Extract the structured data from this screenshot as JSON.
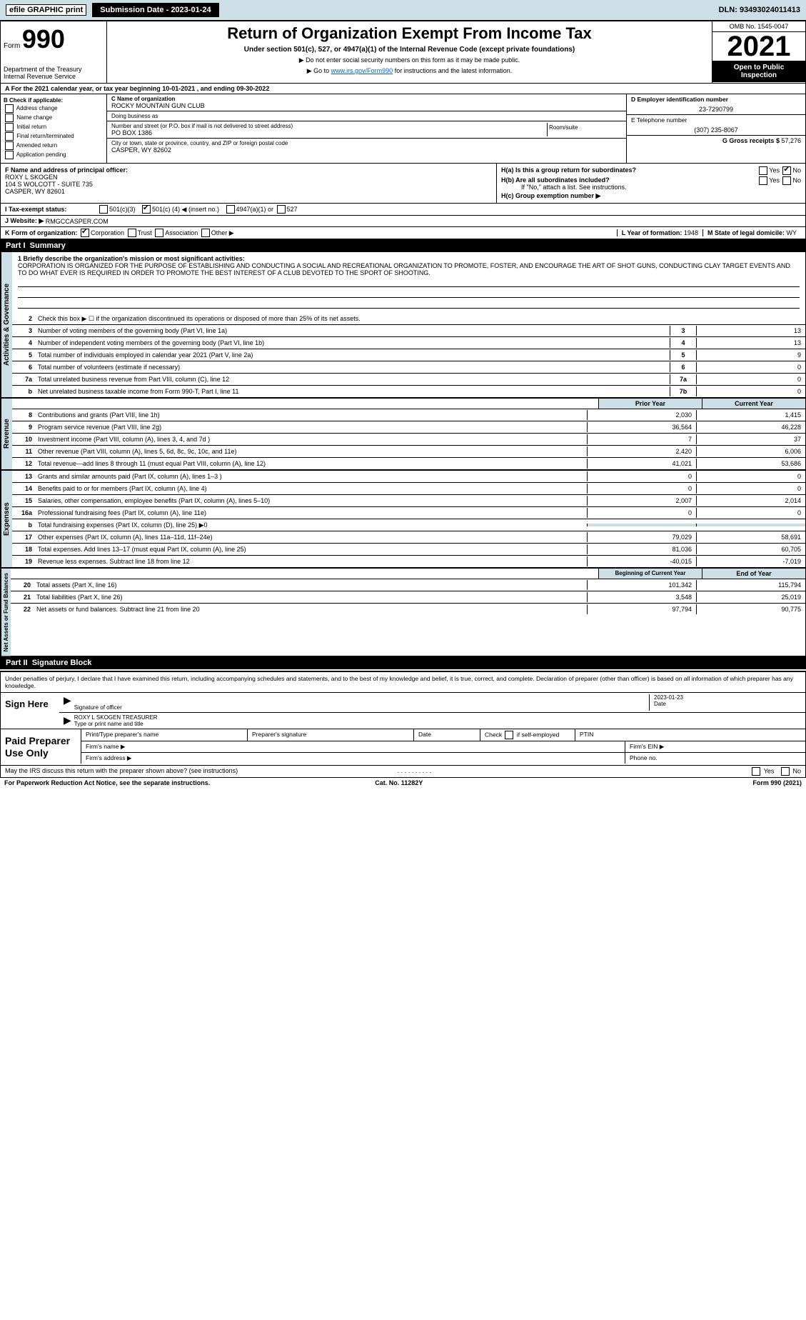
{
  "topbar": {
    "efile": "efile GRAPHIC print",
    "submission": "Submission Date - 2023-01-24",
    "dln": "DLN: 93493024011413"
  },
  "header": {
    "form_word": "Form",
    "form_num": "990",
    "dept": "Department of the Treasury\nInternal Revenue Service",
    "title": "Return of Organization Exempt From Income Tax",
    "subtitle": "Under section 501(c), 527, or 4947(a)(1) of the Internal Revenue Code (except private foundations)",
    "note1": "▶ Do not enter social security numbers on this form as it may be made public.",
    "note2_pre": "▶ Go to ",
    "note2_link": "www.irs.gov/Form990",
    "note2_post": " for instructions and the latest information.",
    "omb": "OMB No. 1545-0047",
    "year": "2021",
    "open": "Open to Public Inspection"
  },
  "rowA": "A For the 2021 calendar year, or tax year beginning 10-01-2021    , and ending 09-30-2022",
  "colB": {
    "label": "B Check if applicable:",
    "items": [
      "Address change",
      "Name change",
      "Initial return",
      "Final return/terminated",
      "Amended return",
      "Application pending"
    ]
  },
  "colC": {
    "name_lbl": "C Name of organization",
    "name": "ROCKY MOUNTAIN GUN CLUB",
    "dba_lbl": "Doing business as",
    "street_lbl": "Number and street (or P.O. box if mail is not delivered to street address)",
    "room_lbl": "Room/suite",
    "street": "PO BOX 1386",
    "city_lbl": "City or town, state or province, country, and ZIP or foreign postal code",
    "city": "CASPER, WY  82602"
  },
  "colD": {
    "ein_lbl": "D Employer identification number",
    "ein": "23-7290799",
    "tel_lbl": "E Telephone number",
    "tel": "(307) 235-8067",
    "gross_lbl": "G Gross receipts $",
    "gross": "57,276"
  },
  "rowF": {
    "label": "F  Name and address of principal officer:",
    "name": "ROXY L SKOGEN",
    "addr1": "104 S WOLCOTT - SUITE 735",
    "addr2": "CASPER, WY  82601"
  },
  "rowH": {
    "ha": "H(a)  Is this a group return for subordinates?",
    "yes": "Yes",
    "no": "No",
    "hb": "H(b)  Are all subordinates included?",
    "hb_note": "If \"No,\" attach a list. See instructions.",
    "hc": "H(c)  Group exemption number ▶"
  },
  "rowI": {
    "label": "I   Tax-exempt status:",
    "o1": "501(c)(3)",
    "o2_pre": "501(c) (",
    "o2_val": "4",
    "o2_post": ") ◀ (insert no.)",
    "o3": "4947(a)(1) or",
    "o4": "527"
  },
  "rowJ": {
    "label": "J   Website: ▶",
    "val": "RMGCCASPER.COM"
  },
  "rowK": {
    "label": "K Form of organization:",
    "o1": "Corporation",
    "o2": "Trust",
    "o3": "Association",
    "o4": "Other ▶"
  },
  "rowL": {
    "label": "L Year of formation:",
    "val": "1948"
  },
  "rowM": {
    "label": "M State of legal domicile:",
    "val": "WY"
  },
  "part1": {
    "num": "Part I",
    "title": "Summary"
  },
  "mission": {
    "label": "1  Briefly describe the organization's mission or most significant activities:",
    "text": "CORPORATION IS ORGANIZED FOR THE PURPOSE OF ESTABLISHING AND CONDUCTING A SOCIAL AND RECREATIONAL ORGANIZATION TO PROMOTE, FOSTER, AND ENCOURAGE THE ART OF SHOT GUNS, CONDUCTING CLAY TARGET EVENTS AND TO DO WHAT EVER IS REQUIRED IN ORDER TO PROMOTE THE BEST INTEREST OF A CLUB DEVOTED TO THE SPORT OF SHOOTING."
  },
  "gov_lines": [
    {
      "n": "2",
      "t": "Check this box ▶ ☐  if the organization discontinued its operations or disposed of more than 25% of its net assets.",
      "box": "",
      "v": ""
    },
    {
      "n": "3",
      "t": "Number of voting members of the governing body (Part VI, line 1a)",
      "box": "3",
      "v": "13"
    },
    {
      "n": "4",
      "t": "Number of independent voting members of the governing body (Part VI, line 1b)",
      "box": "4",
      "v": "13"
    },
    {
      "n": "5",
      "t": "Total number of individuals employed in calendar year 2021 (Part V, line 2a)",
      "box": "5",
      "v": "9"
    },
    {
      "n": "6",
      "t": "Total number of volunteers (estimate if necessary)",
      "box": "6",
      "v": "0"
    },
    {
      "n": "7a",
      "t": "Total unrelated business revenue from Part VIII, column (C), line 12",
      "box": "7a",
      "v": "0"
    },
    {
      "n": "b",
      "t": "Net unrelated business taxable income from Form 990-T, Part I, line 11",
      "box": "7b",
      "v": "0"
    }
  ],
  "col_headers": {
    "prior": "Prior Year",
    "current": "Current Year"
  },
  "revenue": [
    {
      "n": "8",
      "t": "Contributions and grants (Part VIII, line 1h)",
      "p": "2,030",
      "c": "1,415"
    },
    {
      "n": "9",
      "t": "Program service revenue (Part VIII, line 2g)",
      "p": "36,564",
      "c": "46,228"
    },
    {
      "n": "10",
      "t": "Investment income (Part VIII, column (A), lines 3, 4, and 7d )",
      "p": "7",
      "c": "37"
    },
    {
      "n": "11",
      "t": "Other revenue (Part VIII, column (A), lines 5, 6d, 8c, 9c, 10c, and 11e)",
      "p": "2,420",
      "c": "6,006"
    },
    {
      "n": "12",
      "t": "Total revenue—add lines 8 through 11 (must equal Part VIII, column (A), line 12)",
      "p": "41,021",
      "c": "53,686"
    }
  ],
  "expenses": [
    {
      "n": "13",
      "t": "Grants and similar amounts paid (Part IX, column (A), lines 1–3 )",
      "p": "0",
      "c": "0"
    },
    {
      "n": "14",
      "t": "Benefits paid to or for members (Part IX, column (A), line 4)",
      "p": "0",
      "c": "0"
    },
    {
      "n": "15",
      "t": "Salaries, other compensation, employee benefits (Part IX, column (A), lines 5–10)",
      "p": "2,007",
      "c": "2,014"
    },
    {
      "n": "16a",
      "t": "Professional fundraising fees (Part IX, column (A), line 11e)",
      "p": "0",
      "c": "0"
    },
    {
      "n": "b",
      "t": "Total fundraising expenses (Part IX, column (D), line 25) ▶0",
      "p": "",
      "c": "",
      "shaded": true
    },
    {
      "n": "17",
      "t": "Other expenses (Part IX, column (A), lines 11a–11d, 11f–24e)",
      "p": "79,029",
      "c": "58,691"
    },
    {
      "n": "18",
      "t": "Total expenses. Add lines 13–17 (must equal Part IX, column (A), line 25)",
      "p": "81,036",
      "c": "60,705"
    },
    {
      "n": "19",
      "t": "Revenue less expenses. Subtract line 18 from line 12",
      "p": "-40,015",
      "c": "-7,019"
    }
  ],
  "netassets_headers": {
    "begin": "Beginning of Current Year",
    "end": "End of Year"
  },
  "netassets": [
    {
      "n": "20",
      "t": "Total assets (Part X, line 16)",
      "p": "101,342",
      "c": "115,794"
    },
    {
      "n": "21",
      "t": "Total liabilities (Part X, line 26)",
      "p": "3,548",
      "c": "25,019"
    },
    {
      "n": "22",
      "t": "Net assets or fund balances. Subtract line 21 from line 20",
      "p": "97,794",
      "c": "90,775"
    }
  ],
  "vtabs": {
    "gov": "Activities & Governance",
    "rev": "Revenue",
    "exp": "Expenses",
    "net": "Net Assets or Fund Balances"
  },
  "part2": {
    "num": "Part II",
    "title": "Signature Block"
  },
  "penalties": "Under penalties of perjury, I declare that I have examined this return, including accompanying schedules and statements, and to the best of my knowledge and belief, it is true, correct, and complete. Declaration of preparer (other than officer) is based on all information of which preparer has any knowledge.",
  "sign": {
    "label": "Sign Here",
    "sig_lbl": "Signature of officer",
    "date_lbl": "Date",
    "date": "2023-01-23",
    "name": "ROXY L SKOGEN  TREASURER",
    "name_lbl": "Type or print name and title"
  },
  "paid": {
    "label": "Paid Preparer Use Only",
    "h1": "Print/Type preparer's name",
    "h2": "Preparer's signature",
    "h3": "Date",
    "h4_pre": "Check",
    "h4_post": "if self-employed",
    "h5": "PTIN",
    "firm_name": "Firm's name    ▶",
    "firm_ein": "Firm's EIN ▶",
    "firm_addr": "Firm's address ▶",
    "phone": "Phone no."
  },
  "footer": {
    "discuss": "May the IRS discuss this return with the preparer shown above? (see instructions)",
    "yes": "Yes",
    "no": "No",
    "pra": "For Paperwork Reduction Act Notice, see the separate instructions.",
    "cat": "Cat. No. 11282Y",
    "form": "Form 990 (2021)"
  }
}
